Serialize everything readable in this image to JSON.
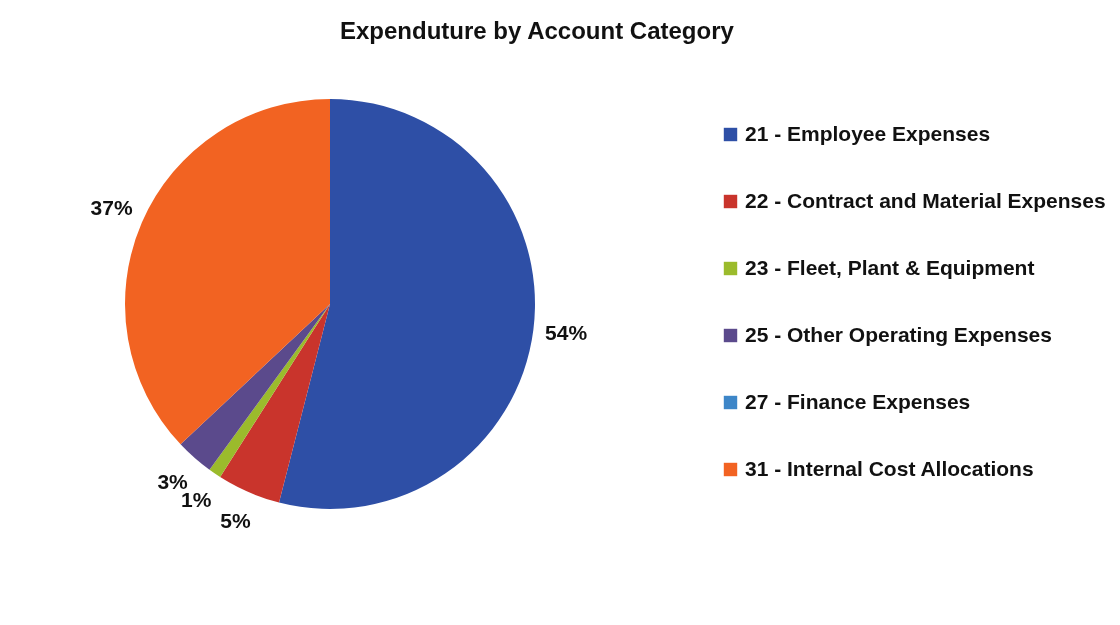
{
  "chart_data": {
    "type": "pie",
    "title": "Expenduture by Account Category",
    "categories": [
      "21 - Employee Expenses",
      "22 - Contract and Material Expenses",
      "23 - Fleet, Plant & Equipment",
      "25 - Other Operating Expenses",
      "27 - Finance Expenses",
      "31 - Internal Cost Allocations"
    ],
    "values": [
      54,
      5,
      1,
      3,
      0,
      37
    ],
    "value_labels": [
      "54%",
      "5%",
      "1%",
      "3%",
      null,
      "37%"
    ],
    "colors": [
      "#2e4fa6",
      "#c9342c",
      "#9bbb2c",
      "#5b4a8c",
      "#3d86c8",
      "#f26322"
    ],
    "legend": "right"
  }
}
